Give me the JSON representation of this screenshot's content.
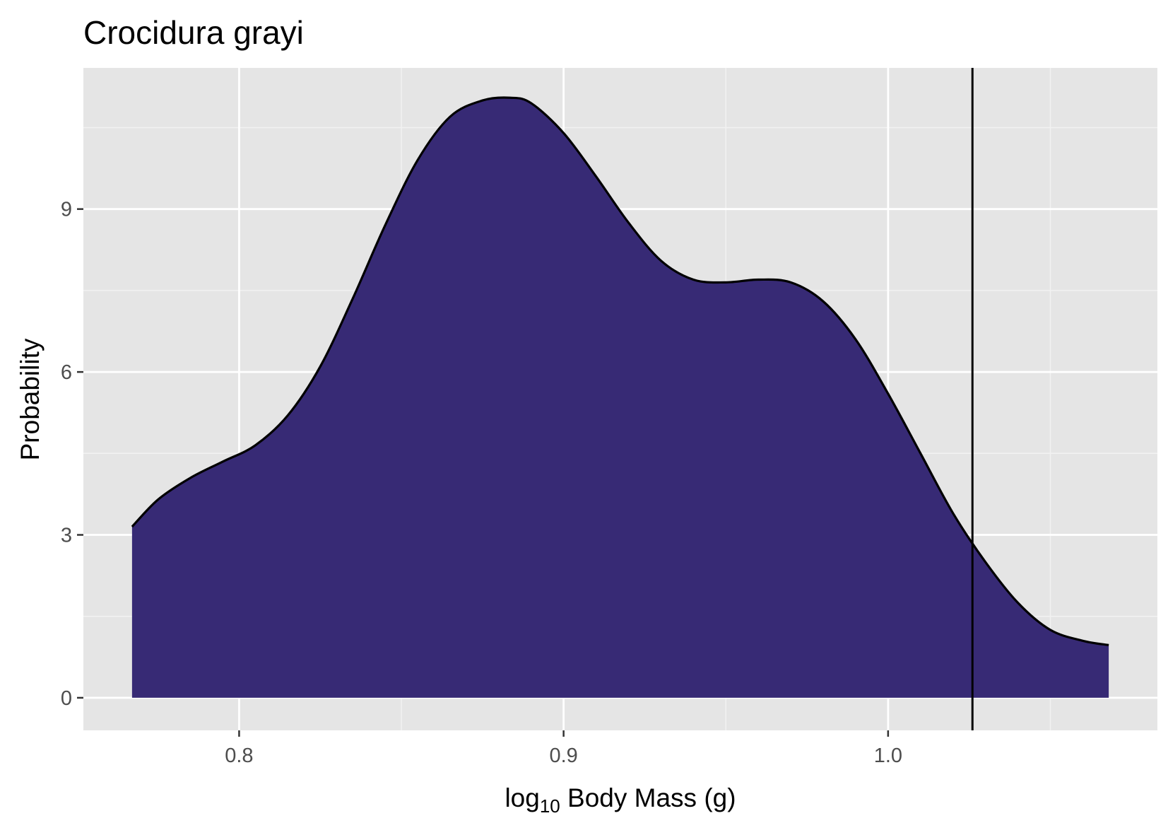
{
  "chart_data": {
    "type": "area",
    "title": "Crocidura grayi",
    "xlabel": {
      "prefix": "log",
      "subscript": "10",
      "suffix": " Body Mass (g)"
    },
    "ylabel": "Probability",
    "xlim": [
      0.752,
      1.083
    ],
    "ylim": [
      -0.6,
      11.6
    ],
    "x_ticks": [
      0.8,
      0.9,
      1.0
    ],
    "x_tick_labels": [
      "0.8",
      "0.9",
      "1.0"
    ],
    "y_ticks": [
      0,
      3,
      6,
      9
    ],
    "y_tick_labels": [
      "0",
      "3",
      "6",
      "9"
    ],
    "grid": true,
    "fill_color": "#372a75",
    "line_color": "#000000",
    "vline_x": 1.026,
    "series": [
      {
        "x": [
          0.767,
          0.775,
          0.785,
          0.795,
          0.805,
          0.815,
          0.825,
          0.835,
          0.845,
          0.855,
          0.865,
          0.875,
          0.8835,
          0.89,
          0.9,
          0.91,
          0.92,
          0.93,
          0.94,
          0.95,
          0.96,
          0.97,
          0.98,
          0.99,
          1.0,
          1.01,
          1.02,
          1.03,
          1.04,
          1.05,
          1.06,
          1.068
        ],
        "y": [
          3.15,
          3.65,
          4.05,
          4.35,
          4.65,
          5.2,
          6.1,
          7.35,
          8.7,
          9.9,
          10.7,
          11.0,
          11.05,
          10.95,
          10.4,
          9.6,
          8.75,
          8.05,
          7.7,
          7.65,
          7.7,
          7.65,
          7.3,
          6.6,
          5.6,
          4.5,
          3.4,
          2.5,
          1.75,
          1.25,
          1.05,
          0.97
        ]
      }
    ]
  }
}
